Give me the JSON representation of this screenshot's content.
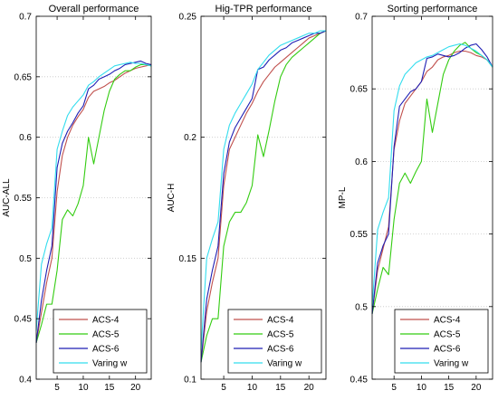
{
  "chart_data": [
    {
      "type": "line",
      "title": "Overall performance",
      "xlabel": "",
      "ylabel": "AUC-ALL",
      "xlim": [
        1,
        23
      ],
      "ylim": [
        0.4,
        0.7
      ],
      "xticks": [
        5,
        10,
        15,
        20
      ],
      "yticks": [
        0.4,
        0.45,
        0.5,
        0.55,
        0.6,
        0.65,
        0.7
      ],
      "ytick_labels": [
        "0.4",
        "0.45",
        "0.5",
        "0.55",
        "0.6",
        "0.65",
        "0.7"
      ],
      "grid": "horizontal",
      "legend": "bottom-right",
      "x": [
        1,
        2,
        3,
        4,
        5,
        6,
        7,
        8,
        9,
        10,
        11,
        12,
        13,
        14,
        15,
        16,
        17,
        18,
        19,
        20,
        21,
        22,
        23
      ],
      "series": [
        {
          "name": "ACS-4",
          "color": "#c0504d",
          "values": [
            0.43,
            0.455,
            0.48,
            0.5,
            0.555,
            0.585,
            0.6,
            0.61,
            0.617,
            0.623,
            0.633,
            0.638,
            0.64,
            0.642,
            0.645,
            0.647,
            0.65,
            0.653,
            0.655,
            0.657,
            0.658,
            0.659,
            0.66
          ]
        },
        {
          "name": "ACS-5",
          "color": "#33cc11",
          "values": [
            0.43,
            0.445,
            0.462,
            0.462,
            0.49,
            0.532,
            0.54,
            0.535,
            0.545,
            0.56,
            0.6,
            0.578,
            0.6,
            0.622,
            0.638,
            0.648,
            0.652,
            0.655,
            0.655,
            0.658,
            0.66,
            0.66,
            0.659
          ]
        },
        {
          "name": "ACS-6",
          "color": "#1f1fb4",
          "values": [
            0.43,
            0.465,
            0.49,
            0.51,
            0.575,
            0.595,
            0.605,
            0.612,
            0.62,
            0.626,
            0.64,
            0.643,
            0.648,
            0.65,
            0.652,
            0.655,
            0.657,
            0.66,
            0.661,
            0.662,
            0.663,
            0.661,
            0.66
          ]
        },
        {
          "name": "Varing w",
          "color": "#33ddee",
          "values": [
            0.44,
            0.495,
            0.512,
            0.525,
            0.59,
            0.605,
            0.618,
            0.625,
            0.63,
            0.635,
            0.643,
            0.646,
            0.65,
            0.653,
            0.656,
            0.659,
            0.66,
            0.661,
            0.662,
            0.661,
            0.661,
            0.66,
            0.659
          ]
        }
      ]
    },
    {
      "type": "line",
      "title": "Hig-TPR performance",
      "xlabel": "",
      "ylabel": "AUC-H",
      "xlim": [
        1,
        23
      ],
      "ylim": [
        0.1,
        0.25
      ],
      "xticks": [
        5,
        10,
        15,
        20
      ],
      "yticks": [
        0.1,
        0.15,
        0.2,
        0.25
      ],
      "ytick_labels": [
        "0.1",
        "0.15",
        "0.2",
        "0.25"
      ],
      "grid": "horizontal",
      "legend": "bottom-right",
      "x": [
        1,
        2,
        3,
        4,
        5,
        6,
        7,
        8,
        9,
        10,
        11,
        12,
        13,
        14,
        15,
        16,
        17,
        18,
        19,
        20,
        21,
        22,
        23
      ],
      "series": [
        {
          "name": "ACS-4",
          "color": "#c0504d",
          "values": [
            0.107,
            0.128,
            0.14,
            0.15,
            0.18,
            0.195,
            0.2,
            0.205,
            0.21,
            0.214,
            0.219,
            0.223,
            0.226,
            0.229,
            0.231,
            0.233,
            0.235,
            0.237,
            0.239,
            0.241,
            0.242,
            0.243,
            0.244
          ]
        },
        {
          "name": "ACS-5",
          "color": "#33cc11",
          "values": [
            0.107,
            0.118,
            0.125,
            0.125,
            0.155,
            0.165,
            0.169,
            0.169,
            0.173,
            0.18,
            0.201,
            0.192,
            0.203,
            0.215,
            0.225,
            0.23,
            0.233,
            0.235,
            0.237,
            0.239,
            0.241,
            0.243,
            0.244
          ]
        },
        {
          "name": "ACS-6",
          "color": "#1f1fb4",
          "values": [
            0.107,
            0.133,
            0.145,
            0.155,
            0.185,
            0.198,
            0.204,
            0.208,
            0.212,
            0.216,
            0.228,
            0.229,
            0.232,
            0.234,
            0.236,
            0.237,
            0.239,
            0.24,
            0.241,
            0.242,
            0.243,
            0.243,
            0.244
          ]
        },
        {
          "name": "Varing w",
          "color": "#33ddee",
          "values": [
            0.112,
            0.15,
            0.158,
            0.165,
            0.195,
            0.205,
            0.21,
            0.214,
            0.218,
            0.222,
            0.228,
            0.231,
            0.234,
            0.236,
            0.238,
            0.239,
            0.24,
            0.241,
            0.242,
            0.243,
            0.243,
            0.244,
            0.244
          ]
        }
      ]
    },
    {
      "type": "line",
      "title": "Sorting performance",
      "xlabel": "",
      "ylabel": "MP-L",
      "xlim": [
        1,
        23
      ],
      "ylim": [
        0.45,
        0.7
      ],
      "xticks": [
        5,
        10,
        15,
        20
      ],
      "yticks": [
        0.45,
        0.5,
        0.55,
        0.6,
        0.65,
        0.7
      ],
      "ytick_labels": [
        "0.45",
        "0.5",
        "0.55",
        "0.6",
        "0.65",
        "0.7"
      ],
      "grid": "horizontal",
      "legend": "bottom-right",
      "x": [
        1,
        2,
        3,
        4,
        5,
        6,
        7,
        8,
        9,
        10,
        11,
        12,
        13,
        14,
        15,
        16,
        17,
        18,
        19,
        20,
        21,
        22,
        23
      ],
      "series": [
        {
          "name": "ACS-4",
          "color": "#c0504d",
          "values": [
            0.495,
            0.525,
            0.54,
            0.555,
            0.608,
            0.628,
            0.64,
            0.645,
            0.65,
            0.655,
            0.662,
            0.665,
            0.67,
            0.672,
            0.673,
            0.675,
            0.676,
            0.676,
            0.675,
            0.673,
            0.672,
            0.67,
            0.665
          ]
        },
        {
          "name": "ACS-5",
          "color": "#33cc11",
          "values": [
            0.495,
            0.512,
            0.527,
            0.522,
            0.56,
            0.585,
            0.592,
            0.585,
            0.593,
            0.6,
            0.643,
            0.62,
            0.64,
            0.66,
            0.67,
            0.676,
            0.68,
            0.682,
            0.678,
            0.675,
            0.673,
            0.67,
            0.665
          ]
        },
        {
          "name": "ACS-6",
          "color": "#1f1fb4",
          "values": [
            0.495,
            0.53,
            0.542,
            0.55,
            0.61,
            0.638,
            0.643,
            0.648,
            0.65,
            0.655,
            0.671,
            0.672,
            0.674,
            0.673,
            0.672,
            0.673,
            0.675,
            0.678,
            0.68,
            0.681,
            0.677,
            0.672,
            0.665
          ]
        },
        {
          "name": "Varing w",
          "color": "#33ddee",
          "values": [
            0.5,
            0.553,
            0.565,
            0.575,
            0.635,
            0.652,
            0.66,
            0.664,
            0.668,
            0.67,
            0.672,
            0.673,
            0.675,
            0.677,
            0.679,
            0.68,
            0.681,
            0.68,
            0.678,
            0.676,
            0.673,
            0.67,
            0.665
          ]
        }
      ]
    }
  ]
}
